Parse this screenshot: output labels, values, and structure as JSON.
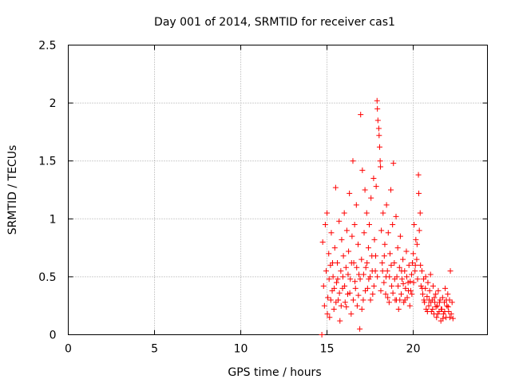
{
  "chart_data": {
    "type": "scatter",
    "title": "Day 001 of 2014, SRMTID for receiver cas1",
    "xlabel": "GPS time / hours",
    "ylabel": "SRMTID / TECUs",
    "xlim": [
      0,
      24.3
    ],
    "ylim": [
      0,
      2.5
    ],
    "xticks": [
      0,
      5,
      10,
      15,
      20
    ],
    "xtick_labels": [
      "0",
      "5",
      "10",
      "15",
      "20"
    ],
    "yticks": [
      0,
      0.5,
      1,
      1.5,
      2,
      2.5
    ],
    "ytick_labels": [
      "0",
      "0.5",
      "1",
      "1.5",
      "2",
      "2.5"
    ],
    "grid": true,
    "marker": "+",
    "color": "#ff0000",
    "series": [
      {
        "name": "cas1",
        "points": [
          [
            14.7,
            0.0
          ],
          [
            14.75,
            0.8
          ],
          [
            14.8,
            0.42
          ],
          [
            14.85,
            0.25
          ],
          [
            14.9,
            0.95
          ],
          [
            14.95,
            0.55
          ],
          [
            15.0,
            1.05
          ],
          [
            15.05,
            0.32
          ],
          [
            15.1,
            0.7
          ],
          [
            15.15,
            0.15
          ],
          [
            15.2,
            0.6
          ],
          [
            15.25,
            0.88
          ],
          [
            15.3,
            0.38
          ],
          [
            15.35,
            0.5
          ],
          [
            15.4,
            0.22
          ],
          [
            15.45,
            0.75
          ],
          [
            15.5,
            1.27
          ],
          [
            15.55,
            0.45
          ],
          [
            15.6,
            0.62
          ],
          [
            15.65,
            0.3
          ],
          [
            15.7,
            0.98
          ],
          [
            15.75,
            0.12
          ],
          [
            15.8,
            0.55
          ],
          [
            15.85,
            0.82
          ],
          [
            15.9,
            0.4
          ],
          [
            15.95,
            0.68
          ],
          [
            16.0,
            1.05
          ],
          [
            16.05,
            0.28
          ],
          [
            16.1,
            0.58
          ],
          [
            16.15,
            0.9
          ],
          [
            16.2,
            0.35
          ],
          [
            16.25,
            0.72
          ],
          [
            16.3,
            1.22
          ],
          [
            16.35,
            0.48
          ],
          [
            16.4,
            0.18
          ],
          [
            16.45,
            0.85
          ],
          [
            16.5,
            1.5
          ],
          [
            16.55,
            0.62
          ],
          [
            16.6,
            0.95
          ],
          [
            16.65,
            0.4
          ],
          [
            16.7,
            1.12
          ],
          [
            16.75,
            0.25
          ],
          [
            16.8,
            0.78
          ],
          [
            16.85,
            0.52
          ],
          [
            16.9,
            0.05
          ],
          [
            16.95,
            1.9
          ],
          [
            17.0,
            0.65
          ],
          [
            17.05,
            1.42
          ],
          [
            17.1,
            0.3
          ],
          [
            17.15,
            0.88
          ],
          [
            17.2,
            1.25
          ],
          [
            17.25,
            0.58
          ],
          [
            17.3,
            1.05
          ],
          [
            17.35,
            0.4
          ],
          [
            17.4,
            0.75
          ],
          [
            17.45,
            0.95
          ],
          [
            17.5,
            0.5
          ],
          [
            17.55,
            1.18
          ],
          [
            17.6,
            0.68
          ],
          [
            17.65,
            0.35
          ],
          [
            17.7,
            1.35
          ],
          [
            17.75,
            0.82
          ],
          [
            17.8,
            0.55
          ],
          [
            17.85,
            1.28
          ],
          [
            17.9,
            2.02
          ],
          [
            17.92,
            1.95
          ],
          [
            17.95,
            1.85
          ],
          [
            18.0,
            1.78
          ],
          [
            18.02,
            1.72
          ],
          [
            18.05,
            1.62
          ],
          [
            18.08,
            1.5
          ],
          [
            18.1,
            1.45
          ],
          [
            18.15,
            0.9
          ],
          [
            18.2,
            0.62
          ],
          [
            18.25,
            1.05
          ],
          [
            18.3,
            0.45
          ],
          [
            18.35,
            0.78
          ],
          [
            18.4,
            0.35
          ],
          [
            18.45,
            1.12
          ],
          [
            18.5,
            0.55
          ],
          [
            18.55,
            0.88
          ],
          [
            18.6,
            0.28
          ],
          [
            18.65,
            0.7
          ],
          [
            18.7,
            1.25
          ],
          [
            18.75,
            0.42
          ],
          [
            18.8,
            0.95
          ],
          [
            18.85,
            1.48
          ],
          [
            18.9,
            0.62
          ],
          [
            18.95,
            0.3
          ],
          [
            19.0,
            1.02
          ],
          [
            19.05,
            0.5
          ],
          [
            19.1,
            0.75
          ],
          [
            19.15,
            0.22
          ],
          [
            19.2,
            0.58
          ],
          [
            19.25,
            0.85
          ],
          [
            19.3,
            0.35
          ],
          [
            19.35,
            0.48
          ],
          [
            19.4,
            0.65
          ],
          [
            19.45,
            0.28
          ],
          [
            19.5,
            0.55
          ],
          [
            19.55,
            0.4
          ],
          [
            19.6,
            0.72
          ],
          [
            19.65,
            0.32
          ],
          [
            19.7,
            0.45
          ],
          [
            19.75,
            0.6
          ],
          [
            19.8,
            0.25
          ],
          [
            19.85,
            0.38
          ],
          [
            19.9,
            0.52
          ],
          [
            19.95,
            0.62
          ],
          [
            20.0,
            0.7
          ],
          [
            20.05,
            0.95
          ],
          [
            20.1,
            0.55
          ],
          [
            20.15,
            0.82
          ],
          [
            20.2,
            0.65
          ],
          [
            20.25,
            0.48
          ],
          [
            20.3,
            1.38
          ],
          [
            20.32,
            1.22
          ],
          [
            20.35,
            0.9
          ],
          [
            20.4,
            1.05
          ],
          [
            20.45,
            0.42
          ],
          [
            20.5,
            0.55
          ],
          [
            20.55,
            0.35
          ],
          [
            20.6,
            0.48
          ],
          [
            20.65,
            0.28
          ],
          [
            20.7,
            0.4
          ],
          [
            20.75,
            0.22
          ],
          [
            20.8,
            0.33
          ],
          [
            20.85,
            0.45
          ],
          [
            20.9,
            0.25
          ],
          [
            20.95,
            0.38
          ],
          [
            21.0,
            0.52
          ],
          [
            21.05,
            0.2
          ],
          [
            21.1,
            0.3
          ],
          [
            21.15,
            0.42
          ],
          [
            21.2,
            0.18
          ],
          [
            21.25,
            0.28
          ],
          [
            21.3,
            0.35
          ],
          [
            21.35,
            0.15
          ],
          [
            21.4,
            0.25
          ],
          [
            21.45,
            0.38
          ],
          [
            21.5,
            0.2
          ],
          [
            21.55,
            0.3
          ],
          [
            21.6,
            0.12
          ],
          [
            21.65,
            0.22
          ],
          [
            21.7,
            0.32
          ],
          [
            21.75,
            0.18
          ],
          [
            21.8,
            0.28
          ],
          [
            21.85,
            0.4
          ],
          [
            21.9,
            0.15
          ],
          [
            21.95,
            0.25
          ],
          [
            22.0,
            0.35
          ],
          [
            22.05,
            0.2
          ],
          [
            22.1,
            0.3
          ],
          [
            22.15,
            0.55
          ],
          [
            22.2,
            0.18
          ],
          [
            22.25,
            0.28
          ],
          [
            22.3,
            0.14
          ],
          [
            15.02,
            0.18
          ],
          [
            15.12,
            0.48
          ],
          [
            15.22,
            0.3
          ],
          [
            15.32,
            0.62
          ],
          [
            15.42,
            0.4
          ],
          [
            15.52,
            0.28
          ],
          [
            15.62,
            0.48
          ],
          [
            15.72,
            0.36
          ],
          [
            15.82,
            0.25
          ],
          [
            15.92,
            0.5
          ],
          [
            16.02,
            0.42
          ],
          [
            16.12,
            0.24
          ],
          [
            16.22,
            0.52
          ],
          [
            16.32,
            0.36
          ],
          [
            16.42,
            0.62
          ],
          [
            16.52,
            0.3
          ],
          [
            16.62,
            0.46
          ],
          [
            16.72,
            0.58
          ],
          [
            16.82,
            0.34
          ],
          [
            16.92,
            0.48
          ],
          [
            17.02,
            0.22
          ],
          [
            17.12,
            0.52
          ],
          [
            17.22,
            0.38
          ],
          [
            17.32,
            0.62
          ],
          [
            17.42,
            0.48
          ],
          [
            17.52,
            0.3
          ],
          [
            17.62,
            0.55
          ],
          [
            17.72,
            0.42
          ],
          [
            17.82,
            0.68
          ],
          [
            17.92,
            0.5
          ],
          [
            18.12,
            0.38
          ],
          [
            18.22,
            0.55
          ],
          [
            18.32,
            0.68
          ],
          [
            18.42,
            0.5
          ],
          [
            18.52,
            0.32
          ],
          [
            18.62,
            0.5
          ],
          [
            18.72,
            0.6
          ],
          [
            18.82,
            0.36
          ],
          [
            18.92,
            0.48
          ],
          [
            19.02,
            0.3
          ],
          [
            19.12,
            0.42
          ],
          [
            19.22,
            0.3
          ],
          [
            19.32,
            0.55
          ],
          [
            19.42,
            0.44
          ],
          [
            19.52,
            0.3
          ],
          [
            19.62,
            0.5
          ],
          [
            19.72,
            0.38
          ],
          [
            19.82,
            0.46
          ],
          [
            19.92,
            0.35
          ],
          [
            20.02,
            0.45
          ],
          [
            20.12,
            0.6
          ],
          [
            20.22,
            0.78
          ],
          [
            20.42,
            0.6
          ],
          [
            20.52,
            0.4
          ],
          [
            20.62,
            0.3
          ],
          [
            20.72,
            0.5
          ],
          [
            20.82,
            0.2
          ],
          [
            20.92,
            0.3
          ],
          [
            21.02,
            0.28
          ],
          [
            21.12,
            0.22
          ],
          [
            21.22,
            0.32
          ],
          [
            21.32,
            0.24
          ],
          [
            21.42,
            0.18
          ],
          [
            21.52,
            0.28
          ],
          [
            21.62,
            0.22
          ],
          [
            21.72,
            0.14
          ],
          [
            21.82,
            0.2
          ],
          [
            21.92,
            0.3
          ],
          [
            22.02,
            0.24
          ],
          [
            22.12,
            0.15
          ]
        ]
      }
    ]
  }
}
